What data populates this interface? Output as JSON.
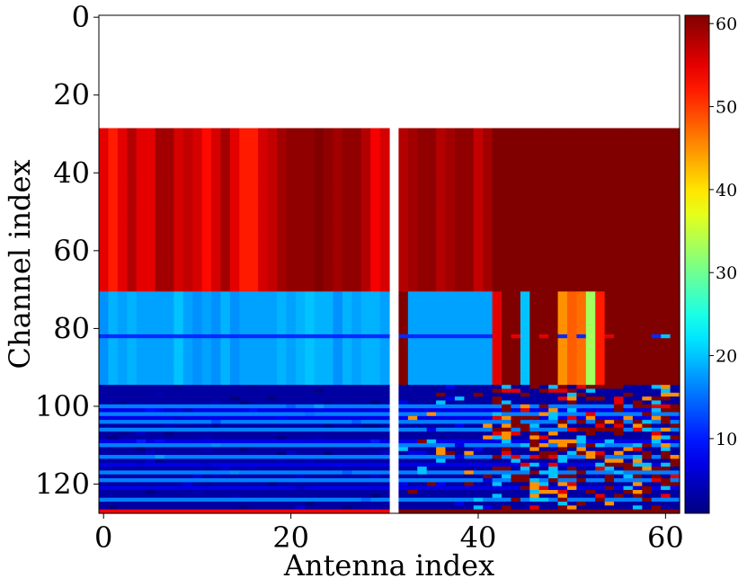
{
  "chart_data": {
    "type": "heatmap",
    "title": "",
    "xlabel": "Antenna index",
    "ylabel": "Channel index",
    "x_range": [
      -0.5,
      61.5
    ],
    "y_range": [
      -0.5,
      127.5
    ],
    "y_inverted": true,
    "x_ticks": [
      "0",
      "20",
      "40",
      "60"
    ],
    "x_tick_values": [
      0,
      20,
      40,
      60
    ],
    "y_ticks": [
      "0",
      "20",
      "40",
      "60",
      "80",
      "100",
      "120"
    ],
    "y_tick_values": [
      0,
      20,
      40,
      60,
      80,
      100,
      120
    ],
    "colormap": "jet",
    "color_range": [
      1,
      61
    ],
    "colorbar_ticks": [
      "10",
      "20",
      "30",
      "40",
      "50",
      "60"
    ],
    "colorbar_tick_values": [
      10,
      20,
      30,
      40,
      50,
      60
    ],
    "grid": false,
    "blank_rows": [
      0,
      28
    ],
    "blank_column": 31,
    "bands": [
      {
        "rows": [
          29,
          70
        ],
        "value_cols_0_30": 54,
        "value_cols_32_61": 61,
        "description": "red/dark-red block"
      },
      {
        "rows": [
          71,
          94
        ],
        "value_cols_0_30": 18,
        "value_cols_32_41": 18,
        "value_cols_42_61": 61,
        "description": "light-blue block with colored columns near 42-53"
      },
      {
        "rows": [
          95,
          126
        ],
        "value_base": 3,
        "description": "dark-blue striped block, mixed colors at cols 42-61"
      },
      {
        "rows": [
          127,
          127
        ],
        "value_cols_0_30": 54,
        "value_cols_32_61": 61
      }
    ]
  }
}
